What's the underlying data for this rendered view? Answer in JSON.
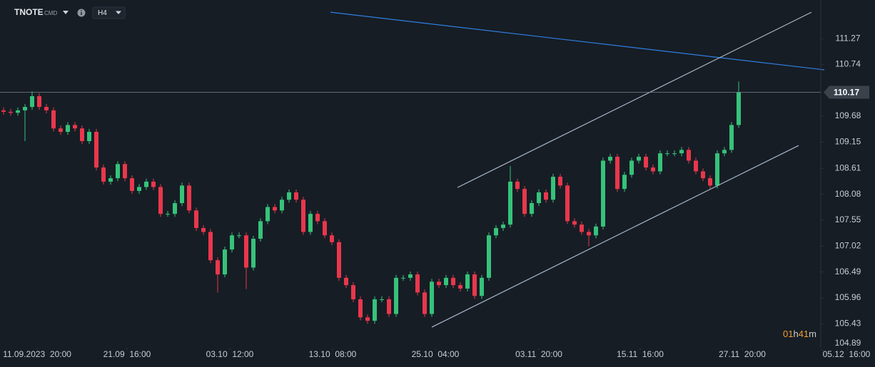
{
  "chart_data": {
    "type": "candlestick",
    "symbol": "TNOTE",
    "symbol_tag": "CMD",
    "timeframe": "H4",
    "up_color": "#36c27a",
    "down_color": "#e9374c",
    "last_price": 110.17,
    "countdown": [
      "01",
      "h",
      "41",
      "m"
    ],
    "xlim": [
      -0.5,
      122.1
    ],
    "xticks": [
      {
        "value": 4.7,
        "label": "11.09.2023  20:00"
      },
      {
        "value": 17.3,
        "label": "21.09  16:00"
      },
      {
        "value": 31.7,
        "label": "03.10  12:00"
      },
      {
        "value": 46.1,
        "label": "13.10  08:00"
      },
      {
        "value": 60.5,
        "label": "25.10  04:00"
      },
      {
        "value": 75,
        "label": "03.11  20:00"
      },
      {
        "value": 89.2,
        "label": "15.11  16:00"
      },
      {
        "value": 103.5,
        "label": "27.11  20:00"
      },
      {
        "value": 118.2,
        "label": "05.12  16:00"
      }
    ],
    "ylim": [
      104.85,
      112.06
    ],
    "yticks": [
      111.27,
      110.74,
      109.68,
      109.15,
      108.61,
      108.08,
      107.55,
      107.02,
      106.49,
      105.96,
      105.43,
      104.89
    ],
    "open": [
      109.8,
      109.77,
      109.75,
      109.8,
      109.87,
      110.09,
      109.87,
      109.8,
      109.43,
      109.36,
      109.5,
      109.43,
      109.17,
      109.36,
      108.63,
      108.34,
      108.41,
      108.7,
      108.41,
      108.15,
      108.23,
      108.34,
      108.23,
      107.68,
      107.68,
      107.9,
      108.26,
      107.75,
      107.39,
      107.31,
      106.73,
      106.44,
      106.95,
      107.24,
      107.24,
      106.58,
      107.17,
      107.53,
      107.82,
      107.75,
      107.97,
      108.12,
      107.97,
      107.31,
      107.68,
      107.53,
      107.24,
      107.1,
      106.37,
      106.22,
      105.93,
      105.56,
      105.49,
      105.93,
      105.93,
      105.63,
      106.37,
      106.37,
      106.44,
      106.07,
      105.63,
      106.29,
      106.22,
      106.37,
      106.22,
      106.15,
      106.44,
      106.0,
      106.37,
      107.24,
      107.39,
      107.46,
      108.34,
      108.19,
      107.68,
      107.9,
      108.12,
      107.97,
      108.44,
      108.26,
      107.53,
      107.46,
      107.31,
      107.24,
      107.42,
      108.77,
      108.85,
      108.19,
      108.48,
      108.77,
      108.85,
      108.63,
      108.55,
      108.92,
      108.92,
      108.92,
      108.99,
      108.77,
      108.55,
      108.41,
      108.26,
      108.92,
      108.99,
      109.5
    ],
    "high": [
      109.86,
      109.83,
      109.86,
      109.93,
      110.19,
      110.15,
      109.93,
      109.86,
      109.49,
      109.56,
      109.56,
      109.49,
      109.42,
      109.42,
      108.69,
      108.47,
      108.76,
      108.76,
      108.47,
      108.29,
      108.4,
      108.4,
      108.29,
      107.74,
      107.96,
      108.32,
      108.32,
      107.81,
      107.45,
      107.37,
      106.79,
      107.01,
      107.3,
      107.3,
      107.3,
      107.23,
      107.59,
      107.88,
      107.88,
      108.03,
      108.18,
      108.18,
      108.03,
      107.74,
      107.74,
      107.59,
      107.3,
      107.16,
      106.43,
      106.28,
      105.99,
      105.62,
      105.99,
      105.99,
      105.99,
      106.43,
      106.43,
      106.5,
      106.5,
      106.13,
      106.35,
      106.35,
      106.43,
      106.43,
      106.28,
      106.5,
      106.5,
      106.43,
      107.3,
      107.45,
      107.52,
      108.66,
      108.4,
      108.25,
      107.96,
      108.18,
      108.18,
      108.5,
      108.5,
      108.32,
      107.59,
      107.52,
      107.37,
      107.48,
      108.83,
      108.91,
      108.91,
      108.54,
      108.83,
      108.91,
      108.91,
      108.69,
      108.98,
      108.98,
      108.98,
      109.05,
      109.05,
      108.83,
      108.61,
      108.47,
      108.98,
      109.05,
      109.56,
      110.39
    ],
    "low": [
      109.71,
      109.69,
      109.69,
      109.17,
      109.81,
      109.81,
      109.74,
      109.37,
      109.3,
      109.3,
      109.37,
      109.11,
      109.11,
      108.57,
      108.28,
      108.28,
      108.35,
      108.35,
      108.09,
      108.09,
      108.17,
      108.17,
      107.62,
      107.62,
      107.62,
      107.84,
      107.69,
      107.33,
      107.25,
      106.67,
      106.07,
      106.38,
      106.89,
      107.18,
      106.14,
      106.52,
      107.11,
      107.47,
      107.69,
      107.69,
      107.91,
      107.91,
      107.25,
      107.25,
      107.47,
      107.18,
      107.04,
      106.31,
      106.16,
      105.87,
      105.5,
      105.43,
      105.43,
      105.87,
      105.57,
      105.57,
      106.31,
      106.31,
      106.01,
      105.57,
      105.57,
      106.16,
      106.16,
      106.16,
      106.09,
      106.09,
      105.94,
      105.94,
      106.31,
      107.18,
      107.33,
      107.4,
      108.13,
      107.62,
      107.62,
      107.84,
      107.91,
      107.91,
      108.2,
      107.47,
      107.4,
      107.25,
      107.02,
      107.18,
      107.36,
      108.71,
      108.13,
      108.13,
      108.42,
      108.71,
      108.57,
      108.49,
      108.49,
      108.86,
      108.86,
      108.86,
      108.71,
      108.49,
      108.35,
      108.2,
      108.2,
      108.86,
      108.93,
      109.44
    ],
    "close": [
      109.77,
      109.75,
      109.8,
      109.87,
      110.09,
      109.87,
      109.8,
      109.43,
      109.36,
      109.5,
      109.43,
      109.17,
      109.36,
      108.63,
      108.34,
      108.41,
      108.7,
      108.41,
      108.15,
      108.23,
      108.34,
      108.23,
      107.68,
      107.68,
      107.9,
      108.26,
      107.75,
      107.39,
      107.31,
      106.73,
      106.44,
      106.95,
      107.24,
      107.24,
      106.58,
      107.17,
      107.53,
      107.82,
      107.75,
      107.97,
      108.12,
      107.97,
      107.31,
      107.68,
      107.53,
      107.24,
      107.1,
      106.37,
      106.22,
      105.93,
      105.56,
      105.49,
      105.93,
      105.93,
      105.63,
      106.37,
      106.37,
      106.44,
      106.07,
      105.63,
      106.29,
      106.22,
      106.37,
      106.22,
      106.15,
      106.44,
      106.0,
      106.37,
      107.24,
      107.39,
      107.46,
      108.34,
      108.19,
      107.68,
      107.9,
      108.12,
      107.97,
      108.44,
      108.26,
      107.53,
      107.46,
      107.31,
      107.24,
      107.42,
      108.77,
      108.85,
      108.19,
      108.48,
      108.77,
      108.85,
      108.63,
      108.55,
      108.92,
      108.92,
      108.92,
      108.99,
      108.77,
      108.55,
      108.41,
      108.26,
      108.92,
      108.99,
      109.5,
      110.17
    ],
    "lines": [
      {
        "color": "#2f7fe0",
        "x": [
          45.8,
          115
        ],
        "y": [
          111.81,
          110.63
        ]
      },
      {
        "color": "#a9b8c8",
        "x": [
          63.6,
          113.2
        ],
        "y": [
          108.22,
          111.81
        ]
      },
      {
        "color": "#a9b8c8",
        "x": [
          60,
          111.4
        ],
        "y": [
          105.36,
          109.08
        ]
      }
    ]
  }
}
